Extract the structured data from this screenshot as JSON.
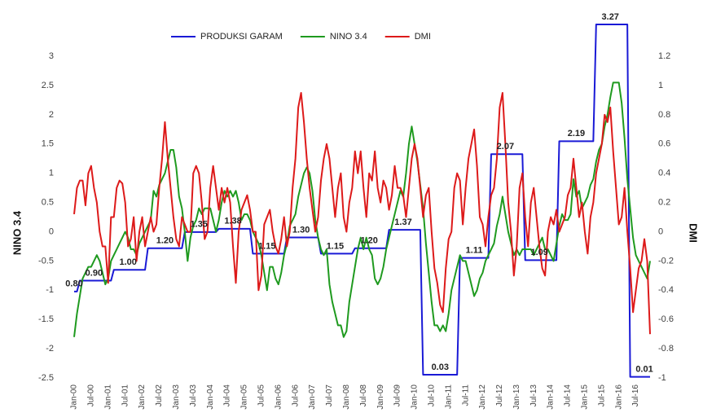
{
  "chart_data": {
    "type": "line",
    "legend": "top",
    "categories": [
      "Jan-00",
      null,
      null,
      null,
      null,
      null,
      "Jul-00",
      null,
      null,
      null,
      null,
      null,
      "Jan-01",
      null,
      null,
      null,
      null,
      null,
      "Jul-01",
      null,
      null,
      null,
      null,
      null,
      "Jan-02",
      null,
      null,
      null,
      null,
      null,
      "Jul-02",
      null,
      null,
      null,
      null,
      null,
      "Jan-03",
      null,
      null,
      null,
      null,
      null,
      "Jul-03",
      null,
      null,
      null,
      null,
      null,
      "Jan-04",
      null,
      null,
      null,
      null,
      null,
      "Jul-04",
      null,
      null,
      null,
      null,
      null,
      "Jan-05",
      null,
      null,
      null,
      null,
      null,
      "Jul-05",
      null,
      null,
      null,
      null,
      null,
      "Jan-06",
      null,
      null,
      null,
      null,
      null,
      "Jul-06",
      null,
      null,
      null,
      null,
      null,
      "Jan-07",
      null,
      null,
      null,
      null,
      null,
      "Jul-07",
      null,
      null,
      null,
      null,
      null,
      "Jan-08",
      null,
      null,
      null,
      null,
      null,
      "Jul-08",
      null,
      null,
      null,
      null,
      null,
      "Jan-09",
      null,
      null,
      null,
      null,
      null,
      "Jul-09",
      null,
      null,
      null,
      null,
      null,
      "Jan-10",
      null,
      null,
      null,
      null,
      null,
      "Jul-10",
      null,
      null,
      null,
      null,
      null,
      "Jan-11",
      null,
      null,
      null,
      null,
      null,
      "Jul-11",
      null,
      null,
      null,
      null,
      null,
      "Jan-12",
      null,
      null,
      null,
      null,
      null,
      "Jul-12",
      null,
      null,
      null,
      null,
      null,
      "Jan-13",
      null,
      null,
      null,
      null,
      null,
      "Jul-13",
      null,
      null,
      null,
      null,
      null,
      "Jan-14",
      null,
      null,
      null,
      null,
      null,
      "Jul-14",
      null,
      null,
      null,
      null,
      null,
      "Jan-15",
      null,
      null,
      null,
      null,
      null,
      "Jul-15",
      null,
      null,
      null,
      null,
      null,
      "Jan-16",
      null,
      null,
      null,
      null,
      null,
      "Jul-16",
      null,
      null,
      null,
      null,
      null
    ],
    "ylabel": "NINO 3.4",
    "y2label": "DMI",
    "ylim": [
      -2.5,
      3.6
    ],
    "yticks": [
      -2.5,
      -2,
      -1.5,
      -1,
      -0.5,
      0,
      0.5,
      1,
      1.5,
      2,
      2.5,
      3
    ],
    "y2lim": [
      -1,
      1.44
    ],
    "y2ticks": [
      -1,
      -0.8,
      -0.6,
      -0.4,
      -0.2,
      0,
      0.2,
      0.4,
      0.6,
      0.8,
      1,
      1.2
    ],
    "y3lim": [
      0,
      3.3
    ],
    "series": [
      {
        "name": "PRODUKSI GARAM",
        "color": "#1a1ad6",
        "axis": "y3",
        "values": [
          0.8,
          0.8,
          0.9,
          0.9,
          0.9,
          0.9,
          0.9,
          0.9,
          0.9,
          0.9,
          0.9,
          0.9,
          0.9,
          0.9,
          1.0,
          1.0,
          1.0,
          1.0,
          1.0,
          1.0,
          1.0,
          1.0,
          1.0,
          1.0,
          1.0,
          1.0,
          1.2,
          1.2,
          1.2,
          1.2,
          1.2,
          1.2,
          1.2,
          1.2,
          1.2,
          1.2,
          1.2,
          1.2,
          1.2,
          1.35,
          1.35,
          1.35,
          1.35,
          1.35,
          1.35,
          1.35,
          1.35,
          1.35,
          1.35,
          1.35,
          1.35,
          1.38,
          1.38,
          1.38,
          1.38,
          1.38,
          1.38,
          1.38,
          1.38,
          1.38,
          1.38,
          1.38,
          1.38,
          1.15,
          1.15,
          1.15,
          1.15,
          1.15,
          1.15,
          1.15,
          1.15,
          1.15,
          1.15,
          1.15,
          1.15,
          1.3,
          1.3,
          1.3,
          1.3,
          1.3,
          1.3,
          1.3,
          1.3,
          1.3,
          1.3,
          1.3,
          1.3,
          1.15,
          1.15,
          1.15,
          1.15,
          1.15,
          1.15,
          1.15,
          1.15,
          1.15,
          1.15,
          1.15,
          1.15,
          1.2,
          1.2,
          1.2,
          1.2,
          1.2,
          1.2,
          1.2,
          1.2,
          1.2,
          1.2,
          1.2,
          1.2,
          1.37,
          1.37,
          1.37,
          1.37,
          1.37,
          1.37,
          1.37,
          1.37,
          1.37,
          1.37,
          1.37,
          1.37,
          0.03,
          0.03,
          0.03,
          0.03,
          0.03,
          0.03,
          0.03,
          0.03,
          0.03,
          0.03,
          0.03,
          0.03,
          0.03,
          1.11,
          1.11,
          1.11,
          1.11,
          1.11,
          1.11,
          1.11,
          1.11,
          1.11,
          1.11,
          1.11,
          2.07,
          2.07,
          2.07,
          2.07,
          2.07,
          2.07,
          2.07,
          2.07,
          2.07,
          2.07,
          2.07,
          2.07,
          1.09,
          1.09,
          1.09,
          1.09,
          1.09,
          1.09,
          1.09,
          1.09,
          1.09,
          1.09,
          1.09,
          1.09,
          2.19,
          2.19,
          2.19,
          2.19,
          2.19,
          2.19,
          2.19,
          2.19,
          2.19,
          2.19,
          2.19,
          2.19,
          2.19,
          3.27,
          3.27,
          3.27,
          3.27,
          3.27,
          3.27,
          3.27,
          3.27,
          3.27,
          3.27,
          3.27,
          3.27,
          0.01,
          0.01,
          0.01,
          0.01,
          0.01,
          0.01,
          0.01,
          0.01
        ],
        "value_labels": [
          "0.80",
          null,
          null,
          null,
          null,
          null,
          null,
          "0.90",
          null,
          null,
          null,
          null,
          null,
          null,
          null,
          null,
          null,
          null,
          null,
          "1.00",
          null,
          null,
          null,
          null,
          null,
          null,
          null,
          null,
          null,
          null,
          null,
          null,
          "1.20",
          null,
          null,
          null,
          null,
          null,
          null,
          null,
          null,
          null,
          null,
          null,
          "1.35",
          null,
          null,
          null,
          null,
          null,
          null,
          null,
          null,
          null,
          null,
          null,
          "1.38",
          null,
          null,
          null,
          null,
          null,
          null,
          null,
          null,
          null,
          null,
          null,
          "1.15",
          null,
          null,
          null,
          null,
          null,
          null,
          null,
          null,
          null,
          null,
          null,
          "1.30",
          null,
          null,
          null,
          null,
          null,
          null,
          null,
          null,
          null,
          null,
          null,
          "1.15",
          null,
          null,
          null,
          null,
          null,
          null,
          null,
          null,
          null,
          null,
          null,
          "1.20",
          null,
          null,
          null,
          null,
          null,
          null,
          null,
          null,
          null,
          null,
          null,
          "1.37",
          null,
          null,
          null,
          null,
          null,
          null,
          null,
          null,
          null,
          null,
          null,
          null,
          "0.03",
          null,
          null,
          null,
          null,
          null,
          null,
          null,
          null,
          null,
          null,
          null,
          "1.11",
          null,
          null,
          null,
          null,
          null,
          null,
          null,
          null,
          null,
          null,
          "2.07",
          null,
          null,
          null,
          null,
          null,
          null,
          null,
          null,
          null,
          null,
          null,
          "1.09",
          null,
          null,
          null,
          null,
          null,
          null,
          null,
          null,
          null,
          null,
          null,
          null,
          "2.19",
          null,
          null,
          null,
          null,
          null,
          null,
          null,
          null,
          null,
          null,
          null,
          "3.27",
          null,
          null,
          null,
          null,
          null,
          null,
          null,
          null,
          null,
          null,
          null,
          "0.01",
          null,
          null
        ]
      },
      {
        "name": "NINO 3.4",
        "color": "#1f9a1f",
        "axis": "y",
        "values": [
          -1.8,
          -1.4,
          -1.1,
          -0.8,
          -0.7,
          -0.6,
          -0.6,
          -0.5,
          -0.4,
          -0.5,
          -0.7,
          -0.9,
          -0.8,
          -0.5,
          -0.4,
          -0.3,
          -0.2,
          -0.1,
          0.0,
          -0.1,
          -0.3,
          -0.3,
          -0.4,
          -0.2,
          -0.1,
          0.0,
          0.1,
          0.2,
          0.7,
          0.6,
          0.8,
          0.9,
          1.0,
          1.2,
          1.4,
          1.4,
          1.1,
          0.6,
          0.4,
          0.0,
          -0.5,
          -0.1,
          0.1,
          0.2,
          0.4,
          0.3,
          0.4,
          0.4,
          0.4,
          0.2,
          0.0,
          0.2,
          0.5,
          0.7,
          0.6,
          0.7,
          0.6,
          0.7,
          0.5,
          0.2,
          0.3,
          0.3,
          0.2,
          0.0,
          -0.1,
          -0.2,
          -0.4,
          -0.7,
          -1.0,
          -0.6,
          -0.6,
          -0.8,
          -0.9,
          -0.7,
          -0.4,
          -0.2,
          0.1,
          0.2,
          0.3,
          0.6,
          0.8,
          1.0,
          1.1,
          1.0,
          0.7,
          0.2,
          -0.1,
          -0.3,
          -0.4,
          -0.3,
          -0.9,
          -1.2,
          -1.4,
          -1.6,
          -1.6,
          -1.8,
          -1.7,
          -1.2,
          -0.9,
          -0.6,
          -0.3,
          -0.1,
          -0.3,
          -0.1,
          -0.3,
          -0.4,
          -0.8,
          -0.9,
          -0.8,
          -0.6,
          -0.3,
          -0.1,
          0.1,
          0.3,
          0.5,
          0.7,
          0.6,
          1.0,
          1.5,
          1.8,
          1.5,
          1.2,
          0.8,
          0.4,
          -0.2,
          -0.7,
          -1.2,
          -1.6,
          -1.6,
          -1.7,
          -1.6,
          -1.7,
          -1.4,
          -1.0,
          -0.8,
          -0.6,
          -0.4,
          -0.5,
          -0.5,
          -0.7,
          -0.9,
          -1.1,
          -1.0,
          -0.8,
          -0.7,
          -0.5,
          -0.4,
          -0.3,
          -0.2,
          0.1,
          0.3,
          0.6,
          0.3,
          0.0,
          -0.2,
          -0.4,
          -0.3,
          -0.4,
          -0.3,
          -0.3,
          -0.3,
          -0.3,
          -0.4,
          -0.3,
          -0.2,
          -0.1,
          -0.3,
          -0.3,
          -0.4,
          -0.5,
          -0.2,
          0.1,
          0.3,
          0.2,
          0.2,
          0.3,
          0.9,
          0.6,
          0.7,
          0.4,
          0.5,
          0.6,
          0.8,
          0.9,
          1.2,
          1.4,
          1.5,
          1.8,
          2.0,
          2.3,
          2.55,
          2.55,
          2.55,
          2.2,
          1.6,
          0.9,
          0.4,
          -0.1,
          -0.4,
          -0.5,
          -0.6,
          -0.7,
          -0.8,
          -0.5
        ]
      },
      {
        "name": "DMI",
        "color": "#dd1a1a",
        "axis": "y2",
        "values": [
          0.12,
          0.3,
          0.35,
          0.35,
          0.18,
          0.4,
          0.45,
          0.3,
          0.2,
          0.0,
          -0.1,
          -0.1,
          -0.35,
          0.1,
          0.1,
          0.3,
          0.35,
          0.33,
          0.2,
          -0.1,
          -0.05,
          0.1,
          -0.2,
          0.0,
          0.1,
          -0.1,
          0.0,
          0.1,
          0.0,
          0.05,
          0.3,
          0.5,
          0.75,
          0.5,
          0.3,
          0.1,
          -0.05,
          -0.1,
          0.1,
          0.05,
          0.0,
          0.0,
          0.4,
          0.45,
          0.4,
          0.2,
          -0.05,
          0.0,
          0.3,
          0.45,
          0.3,
          0.15,
          0.3,
          0.2,
          0.3,
          0.2,
          -0.1,
          -0.35,
          0.0,
          0.15,
          0.2,
          0.25,
          0.15,
          0.0,
          0.0,
          -0.4,
          -0.3,
          0.05,
          0.1,
          0.15,
          0.0,
          -0.1,
          -0.15,
          -0.05,
          0.1,
          -0.1,
          0.0,
          0.3,
          0.5,
          0.85,
          0.95,
          0.75,
          0.5,
          0.3,
          0.15,
          0.0,
          0.1,
          0.35,
          0.5,
          0.6,
          0.5,
          0.3,
          0.1,
          0.3,
          0.4,
          0.1,
          0.0,
          0.2,
          0.3,
          0.55,
          0.4,
          0.55,
          0.3,
          0.1,
          0.4,
          0.35,
          0.55,
          0.3,
          0.2,
          0.35,
          0.3,
          0.15,
          0.25,
          0.45,
          0.3,
          0.3,
          0.25,
          0.1,
          0.3,
          0.5,
          0.6,
          0.5,
          0.3,
          0.1,
          0.25,
          0.3,
          0.0,
          -0.25,
          -0.35,
          -0.5,
          -0.55,
          -0.25,
          -0.05,
          0.0,
          0.3,
          0.4,
          0.35,
          0.05,
          0.3,
          0.5,
          0.6,
          0.7,
          0.45,
          0.1,
          0.05,
          -0.1,
          0.1,
          0.25,
          0.3,
          0.5,
          0.85,
          0.95,
          0.6,
          0.2,
          0.0,
          -0.3,
          -0.1,
          0.3,
          0.4,
          0.1,
          -0.1,
          0.2,
          0.3,
          0.1,
          -0.1,
          -0.25,
          -0.3,
          0.0,
          0.1,
          0.05,
          0.15,
          0.0,
          0.05,
          0.1,
          0.25,
          0.3,
          0.5,
          0.3,
          0.1,
          0.2,
          0.0,
          -0.15,
          0.1,
          0.2,
          0.4,
          0.5,
          0.6,
          0.8,
          0.75,
          0.85,
          0.55,
          0.3,
          0.05,
          0.1,
          0.3,
          0.0,
          -0.25,
          -0.55,
          -0.4,
          -0.25,
          -0.2,
          -0.05,
          -0.2,
          -0.7
        ]
      }
    ]
  }
}
